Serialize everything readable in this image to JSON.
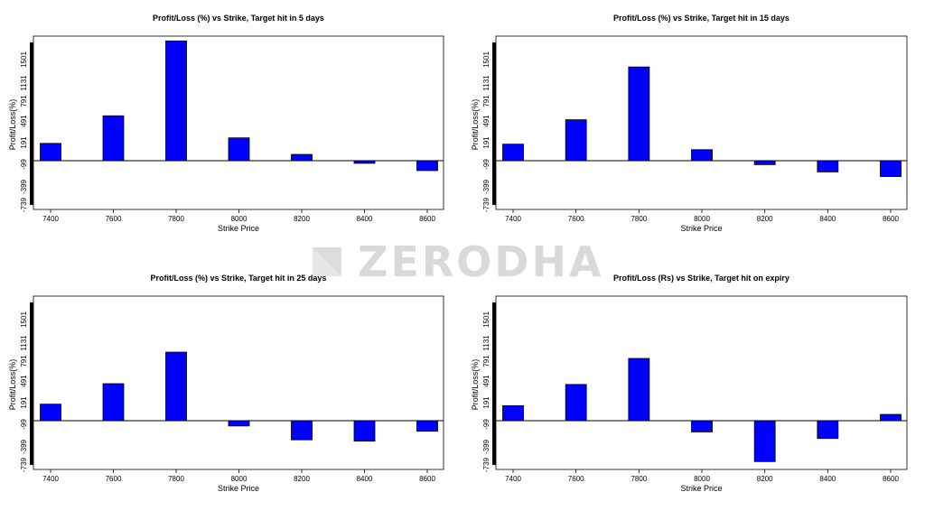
{
  "watermark": "ZERODHA",
  "colors": {
    "bar_fill": "#0000ff",
    "bar_stroke": "#000000",
    "baseline": "#000000"
  },
  "chart_data": [
    {
      "type": "bar",
      "title": "Profit/Loss (%) vs Strike, Target hit in 5 days",
      "xlabel": "Strike Price",
      "ylabel": "Profit/Loss(%)",
      "categories": [
        "7400",
        "7600",
        "7800",
        "8000",
        "8200",
        "8400",
        "8600"
      ],
      "values": [
        220,
        570,
        1520,
        290,
        80,
        -40,
        -150
      ],
      "yticks": [
        "-739",
        "-399",
        "-99",
        "191",
        "491",
        "791",
        "1131",
        "1501"
      ],
      "ylim": [
        -739,
        1501
      ],
      "grid": false
    },
    {
      "type": "bar",
      "title": "Profit/Loss (%) vs Strike, Target hit in 15 days",
      "xlabel": "Strike Price",
      "ylabel": "Profit/Loss(%)",
      "categories": [
        "7400",
        "7600",
        "7800",
        "8000",
        "8200",
        "8400",
        "8600"
      ],
      "values": [
        210,
        520,
        1190,
        140,
        -60,
        -170,
        -240
      ],
      "yticks": [
        "-739",
        "-399",
        "-99",
        "191",
        "491",
        "791",
        "1131",
        "1501"
      ],
      "ylim": [
        -739,
        1501
      ],
      "grid": false
    },
    {
      "type": "bar",
      "title": "Profit/Loss (%) vs Strike, Target hit in 25 days",
      "xlabel": "Strike Price",
      "ylabel": "Profit/Loss(%)",
      "categories": [
        "7400",
        "7600",
        "7800",
        "8000",
        "8200",
        "8400",
        "8600"
      ],
      "values": [
        210,
        470,
        870,
        -80,
        -290,
        -310,
        -160
      ],
      "yticks": [
        "-739",
        "-399",
        "-99",
        "191",
        "491",
        "791",
        "1131",
        "1501"
      ],
      "ylim": [
        -739,
        1501
      ],
      "grid": false
    },
    {
      "type": "bar",
      "title": "Profit/Loss (Rs) vs Strike, Target hit on expiry",
      "xlabel": "Strike Price",
      "ylabel": "Profit/Loss(%)",
      "categories": [
        "7400",
        "7600",
        "7800",
        "8000",
        "8200",
        "8400",
        "8600"
      ],
      "values": [
        190,
        460,
        790,
        -170,
        -620,
        -270,
        80
      ],
      "yticks": [
        "-739",
        "-399",
        "-99",
        "191",
        "491",
        "791",
        "1131",
        "1501"
      ],
      "ylim": [
        -739,
        1501
      ],
      "grid": false
    }
  ]
}
